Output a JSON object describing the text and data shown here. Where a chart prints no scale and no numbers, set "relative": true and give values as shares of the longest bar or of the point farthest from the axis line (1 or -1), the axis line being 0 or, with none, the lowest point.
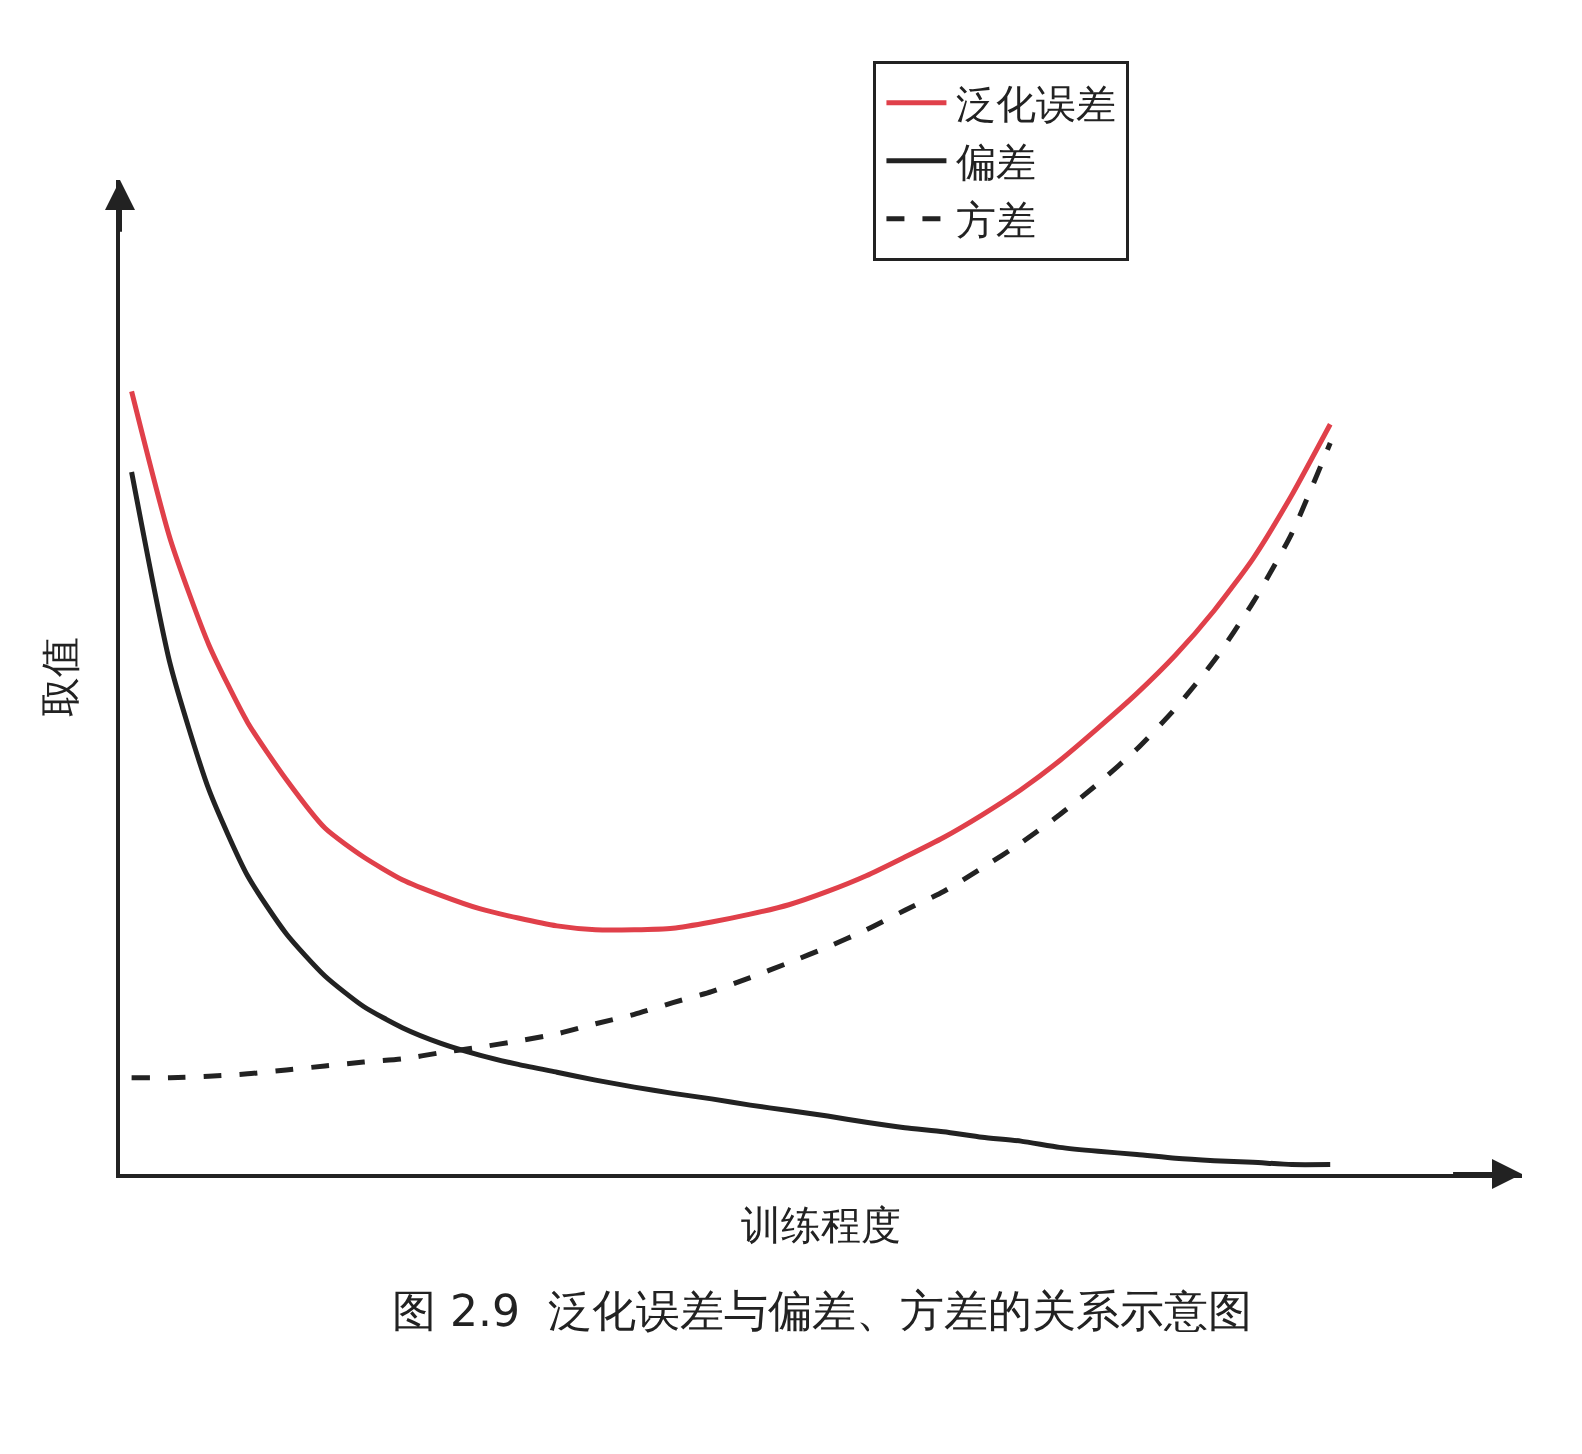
{
  "chart_data": {
    "type": "line",
    "relative": true,
    "xlabel": "训练程度",
    "ylabel": "取值",
    "annotations": [
      "图 2.9  泛化误差与偏差、方差的关系示意图"
    ],
    "categories": [
      null,
      null,
      null,
      null,
      null,
      null,
      null,
      null,
      null,
      null,
      null,
      null,
      null,
      null,
      null,
      null,
      null,
      null,
      null,
      null,
      null,
      null,
      null,
      null,
      null,
      null,
      null,
      null,
      null,
      null,
      null,
      null
    ],
    "series": [
      {
        "name": "泛化误差",
        "color": "#e0404a",
        "line_style": "solid",
        "values": [
          1,
          0.811,
          0.676,
          0.577,
          0.504,
          0.442,
          0.405,
          0.376,
          0.356,
          0.339,
          0.327,
          0.317,
          0.312,
          0.312,
          0.314,
          0.322,
          0.332,
          0.344,
          0.361,
          0.381,
          0.405,
          0.43,
          0.459,
          0.491,
          0.528,
          0.57,
          0.614,
          0.663,
          0.72,
          0.786,
          0.867,
          0.958
        ]
      },
      {
        "name": "偏差",
        "color": "#222222",
        "line_style": "solid",
        "values": [
          0.897,
          0.651,
          0.491,
          0.381,
          0.307,
          0.253,
          0.214,
          0.187,
          0.167,
          0.152,
          0.14,
          0.13,
          0.12,
          0.111,
          0.103,
          0.096,
          0.088,
          0.081,
          0.074,
          0.066,
          0.059,
          0.054,
          0.047,
          0.042,
          0.034,
          0.029,
          0.025,
          0.02,
          0.017,
          0.015,
          0.012,
          0.012
        ]
      },
      {
        "name": "方差",
        "color": "#222222",
        "line_style": "dashed",
        "values": [
          0.123,
          0.123,
          0.125,
          0.128,
          0.133,
          0.138,
          0.143,
          0.147,
          0.155,
          0.162,
          0.17,
          0.179,
          0.192,
          0.204,
          0.219,
          0.233,
          0.251,
          0.27,
          0.29,
          0.312,
          0.337,
          0.361,
          0.391,
          0.423,
          0.459,
          0.499,
          0.543,
          0.595,
          0.656,
          0.73,
          0.818,
          0.934
        ]
      }
    ],
    "legend": "top right",
    "marker": "none"
  }
}
